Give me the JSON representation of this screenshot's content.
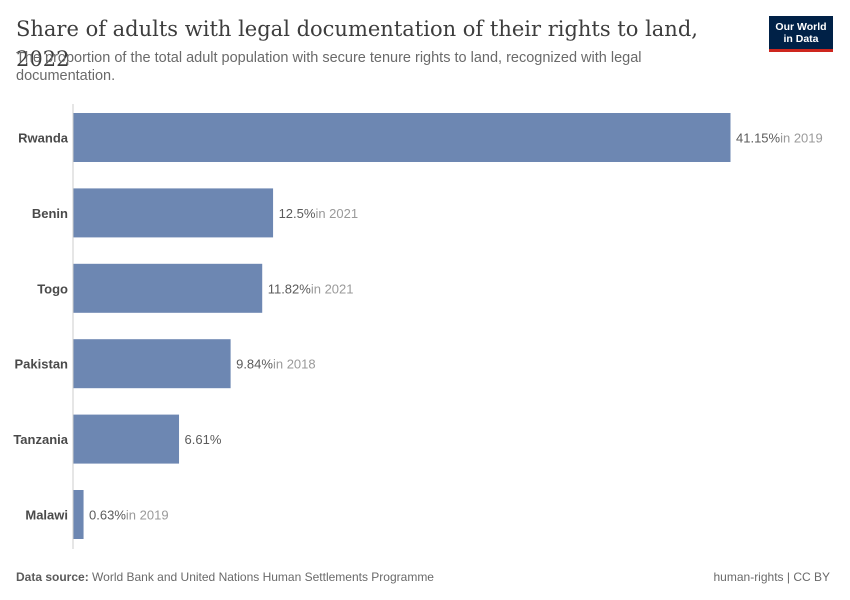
{
  "header": {
    "title": "Share of adults with legal documentation of their rights to land, 2022",
    "subtitle": "The proportion of the total adult population with secure tenure rights to land, recognized with legal documentation.",
    "logo_line1": "Our World",
    "logo_line2": "in Data"
  },
  "footer": {
    "source_label": "Data source:",
    "source_text": "World Bank and United Nations Human Settlements Programme",
    "license": "human-rights | CC BY"
  },
  "colors": {
    "bar": "#6d87b2",
    "value_text": "#5b5b5b",
    "year_text": "#9a9a9a",
    "axis": "#cccccc",
    "category_text": "#4a4a4a"
  },
  "chart_data": {
    "type": "bar",
    "orientation": "horizontal",
    "categories": [
      "Rwanda",
      "Benin",
      "Togo",
      "Pakistan",
      "Tanzania",
      "Malawi"
    ],
    "values": [
      41.15,
      12.5,
      11.82,
      9.84,
      6.61,
      0.63
    ],
    "value_labels": [
      "41.15%",
      "12.5%",
      "11.82%",
      "9.84%",
      "6.61%",
      "0.63%"
    ],
    "year_notes": [
      "in 2019",
      "in 2021",
      "in 2021",
      "in 2018",
      "",
      "in 2019"
    ],
    "unit": "%",
    "xlim": [
      0,
      41.15
    ],
    "grid": false
  }
}
